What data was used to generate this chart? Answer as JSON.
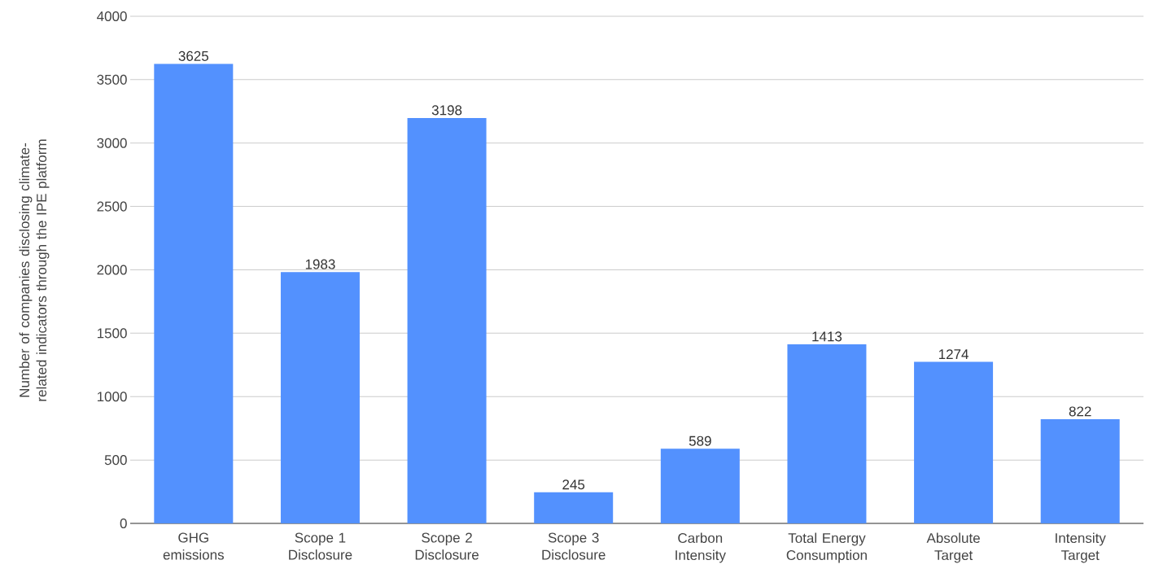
{
  "chart_data": {
    "type": "bar",
    "ylabel": "Number of companies disclosing climate-related indicators through the IPE platform",
    "categories": [
      "GHG emissions",
      "Scope 1 Disclosure",
      "Scope 2 Disclosure",
      "Scope 3 Disclosure",
      "Carbon Intensity",
      "Total Energy Consumption",
      "Absolute Target",
      "Intensity Target"
    ],
    "values": [
      3625,
      1983,
      3198,
      245,
      589,
      1413,
      1274,
      822
    ],
    "color": "#5391fe",
    "ylim": [
      0,
      4000
    ],
    "yticks": [
      0,
      500,
      1000,
      1500,
      2000,
      2500,
      3000,
      3500,
      4000
    ],
    "grid": "y",
    "data_labels": true
  }
}
